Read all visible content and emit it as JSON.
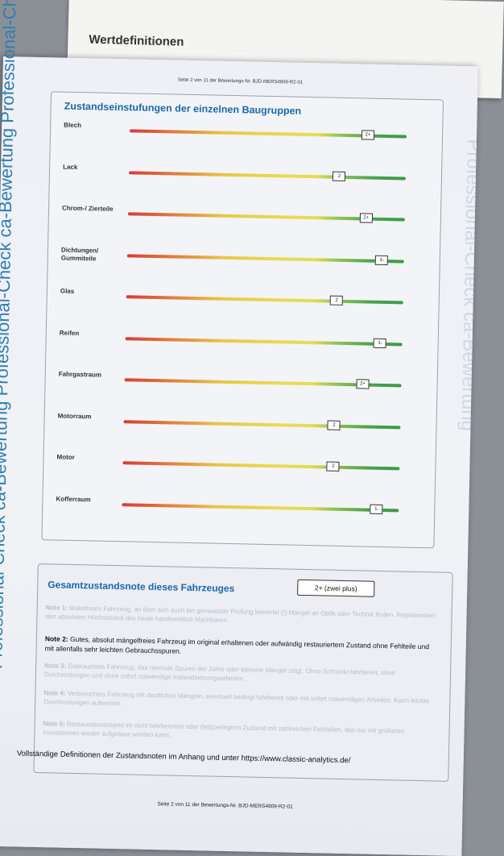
{
  "back_sheet": {
    "title": "Wertdefinitionen"
  },
  "sidebar_text": "Professional-Check  ca-Bewertung  Professional-Check  ca-Bewertung  Professional-Check  ca-Bewertung",
  "watermark_text": "Professional-Check  ca-Bewertung",
  "header": {
    "page_ref": "Seite 2 von 11 der Bewertungs-Nr. BJD-MERS4809-R2-01"
  },
  "components_section": {
    "title": "Zustandseinstufungen der einzelnen Baugruppen",
    "rows": [
      {
        "label": "Blech",
        "grade": "2+",
        "position": 0.86
      },
      {
        "label": "Lack",
        "grade": "2",
        "position": 0.76
      },
      {
        "label": "Chrom-/ Zierteile",
        "grade": "2+",
        "position": 0.86
      },
      {
        "label": "Dichtungen/ Gummiteile",
        "grade": "1-",
        "position": 0.92
      },
      {
        "label": "Glas",
        "grade": "2",
        "position": 0.76
      },
      {
        "label": "Reifen",
        "grade": "1-",
        "position": 0.92
      },
      {
        "label": "Fahrgastraum",
        "grade": "2+",
        "position": 0.86
      },
      {
        "label": "Motorraum",
        "grade": "2",
        "position": 0.76
      },
      {
        "label": "Motor",
        "grade": "2",
        "position": 0.76
      },
      {
        "label": "Kofferraum",
        "grade": "1-",
        "position": 0.92
      }
    ]
  },
  "overall_section": {
    "title": "Gesamtzustandsnote dieses Fahrzeuges",
    "value": "2+ (zwei plus)",
    "notes": [
      {
        "label": "Note 1:",
        "text": "Makelloses Fahrzeug, an dem sich auch bei genauester Prüfung keinerlei (!) Mängel an Optik oder Technik finden. Repräsentiert den absoluten Höchststand des heute handwerklich Machbaren.",
        "active": false
      },
      {
        "label": "Note 2:",
        "text": "Gutes, absolut mängelfreies Fahrzeug im original erhaltenen oder aufwändig restauriertem Zustand ohne Fehlteile und mit allenfalls sehr leichten Gebrauchsspuren.",
        "active": true
      },
      {
        "label": "Note 3:",
        "text": "Gebrauchtes Fahrzeug, das normale Spuren der Jahre oder kleinere Mängel zeigt. Ohne Schränkt fahrbereit, ohne Durchrostungen und ohne sofort notwendige Instandsetzungsarbeiten.",
        "active": false
      },
      {
        "label": "Note 4:",
        "text": "Verbrauchtes Fahrzeug mit deutlichen Mängeln, eventuell bedingt fahrbereit oder mit sofort notwendigen Arbeiten. Kann leichte Durchrostungen aufweisen.",
        "active": false
      },
      {
        "label": "Note 5:",
        "text": "Restaurationsobjekt im nicht fahrbereiten oder (teil)zerlegtem Zustand mit zahlreichen Fehlteilen, das nur mit größeren Investitionen wieder aufgebaut werden kann.",
        "active": false
      }
    ],
    "definitions_link": "Vollständige Definitionen der Zustandsnoten im Anhang und unter https://www.classic-analytics.de/"
  },
  "footer": {
    "page_ref": "Seite 2 von 11 der Bewertungs-Nr. BJD-MERS4809-R2-01"
  }
}
